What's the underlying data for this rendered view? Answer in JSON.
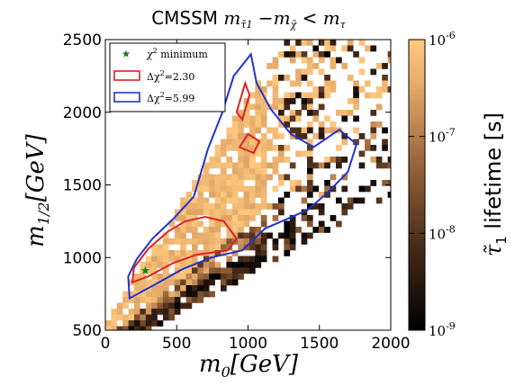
{
  "chart_data": {
    "type": "heatmap",
    "title": "CMSSM m_τ̃1 − m_χ̃ < m_τ",
    "xlabel": "m0[GeV]",
    "ylabel": "m1/2[GeV]",
    "xlim": [
      0,
      2000
    ],
    "ylim": [
      500,
      2500
    ],
    "xticks": [
      "0",
      "500",
      "1000",
      "1500",
      "2000"
    ],
    "yticks": [
      "500",
      "1000",
      "1500",
      "2000",
      "2500"
    ],
    "colorbar": {
      "label": "τ̃1 lifetime [s]",
      "scale": "log",
      "range": [
        1e-09,
        1e-06
      ],
      "ticks": [
        "10^-9",
        "10^-8",
        "10^-7",
        "10^-6"
      ],
      "colormap": "copper",
      "colors": [
        "#000000",
        "#ffc97f"
      ]
    },
    "legend": {
      "position": "top-left",
      "entries": [
        {
          "label": "χ² minimum",
          "marker": "star",
          "color": "#1a7f1a"
        },
        {
          "label": "Δχ²=2.30",
          "marker": "box",
          "color": "#dd2222"
        },
        {
          "label": "Δχ²=5.99",
          "marker": "box",
          "color": "#2233cc"
        }
      ]
    },
    "best_fit": {
      "x": 280,
      "y": 910
    },
    "contour_68": [
      [
        190,
        830
      ],
      [
        300,
        870
      ],
      [
        470,
        960
      ],
      [
        640,
        1020
      ],
      [
        860,
        1050
      ],
      [
        920,
        1130
      ],
      [
        830,
        1250
      ],
      [
        700,
        1280
      ],
      [
        560,
        1250
      ],
      [
        440,
        1180
      ],
      [
        300,
        1060
      ],
      [
        200,
        930
      ]
    ],
    "contour_95": [
      [
        170,
        720
      ],
      [
        320,
        800
      ],
      [
        540,
        920
      ],
      [
        740,
        1000
      ],
      [
        960,
        1050
      ],
      [
        1120,
        1200
      ],
      [
        1260,
        1260
      ],
      [
        1420,
        1330
      ],
      [
        1560,
        1450
      ],
      [
        1700,
        1590
      ],
      [
        1760,
        1780
      ],
      [
        1640,
        1880
      ],
      [
        1460,
        1760
      ],
      [
        1300,
        1850
      ],
      [
        1160,
        2020
      ],
      [
        1060,
        2200
      ],
      [
        1020,
        2400
      ],
      [
        900,
        2250
      ],
      [
        820,
        2000
      ],
      [
        720,
        1750
      ],
      [
        620,
        1420
      ],
      [
        480,
        1270
      ],
      [
        330,
        1130
      ],
      [
        220,
        990
      ],
      [
        160,
        870
      ]
    ],
    "contour_68_islands": [
      [
        [
          940,
          1760
        ],
        [
          1040,
          1720
        ],
        [
          1080,
          1800
        ],
        [
          1000,
          1850
        ]
      ],
      [
        [
          920,
          2000
        ],
        [
          980,
          2200
        ],
        [
          1010,
          2120
        ],
        [
          960,
          1950
        ]
      ]
    ]
  }
}
